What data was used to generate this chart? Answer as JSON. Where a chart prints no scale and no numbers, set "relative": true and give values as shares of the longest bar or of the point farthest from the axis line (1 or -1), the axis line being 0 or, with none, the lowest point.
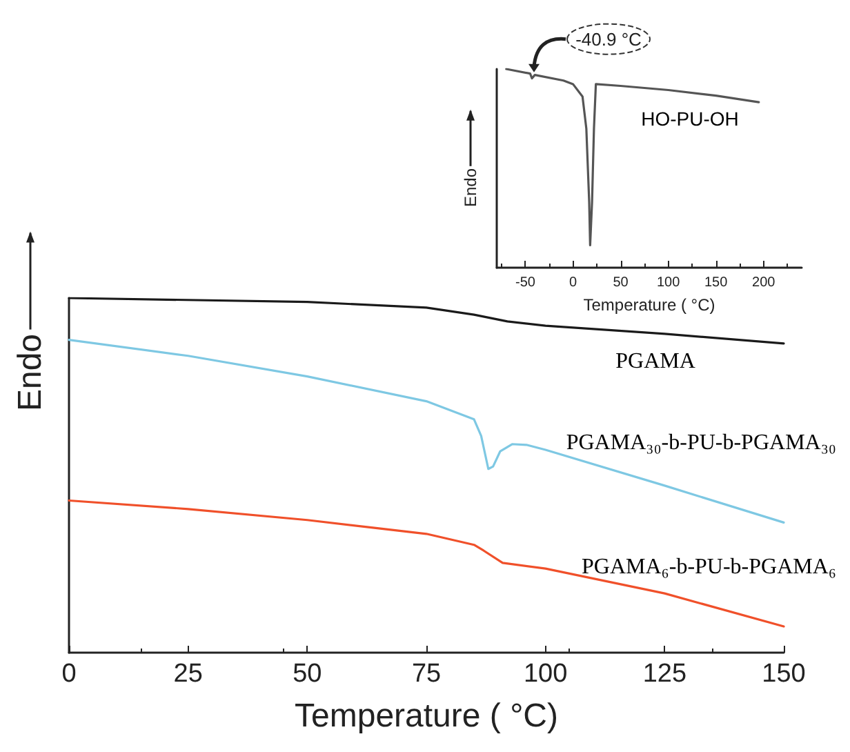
{
  "chart_data": [
    {
      "type": "line",
      "relative": true,
      "xlabel": "Temperature ( °C)",
      "ylabel": "Endo",
      "xlim": [
        0,
        150
      ],
      "xticks": [
        0,
        25,
        50,
        75,
        100,
        125,
        150
      ],
      "marker": "none",
      "line_style": "solid",
      "series": [
        {
          "name": "PGAMA",
          "color": "#1a1a1a",
          "x": [
            0,
            50,
            75,
            85,
            92,
            100,
            125,
            150
          ],
          "values": [
            1.0,
            0.989,
            0.973,
            0.953,
            0.934,
            0.922,
            0.899,
            0.872
          ]
        },
        {
          "name": "PGAMA₃₀-b-PU-b-PGAMA₃₀",
          "color": "#7ec8e3",
          "x": [
            0,
            25,
            50,
            75,
            85,
            86.5,
            88,
            89,
            90.5,
            93,
            96,
            100,
            125,
            150
          ],
          "values": [
            0.882,
            0.837,
            0.779,
            0.709,
            0.658,
            0.611,
            0.518,
            0.525,
            0.568,
            0.588,
            0.586,
            0.572,
            0.471,
            0.367
          ]
        },
        {
          "name": "PGAMA₆-b-PU-b-PGAMA₆",
          "color": "#f0502a",
          "x": [
            0,
            25,
            50,
            75,
            85,
            87,
            91,
            100,
            125,
            150
          ],
          "values": [
            0.429,
            0.405,
            0.374,
            0.335,
            0.304,
            0.288,
            0.253,
            0.237,
            0.167,
            0.074
          ]
        }
      ]
    },
    {
      "type": "line",
      "relative": true,
      "xlabel": "Temperature ( °C)",
      "ylabel": "Endo",
      "xlim": [
        -80,
        240
      ],
      "xticks": [
        -50,
        0,
        50,
        100,
        150,
        200
      ],
      "marker": "none",
      "line_style": "solid",
      "annotations": [
        {
          "text": "-40.9 °C",
          "x": -40.9,
          "y": 0.97
        }
      ],
      "series": [
        {
          "name": "HO-PU-OH",
          "color": "#555555",
          "x": [
            -70,
            -45,
            -43,
            -40,
            -10,
            0,
            10,
            14,
            17,
            18,
            20,
            22,
            24,
            50,
            100,
            150,
            195
          ],
          "values": [
            1.0,
            0.977,
            0.953,
            0.97,
            0.942,
            0.924,
            0.861,
            0.7,
            0.33,
            0.113,
            0.33,
            0.7,
            0.924,
            0.915,
            0.894,
            0.866,
            0.833
          ]
        }
      ]
    }
  ]
}
